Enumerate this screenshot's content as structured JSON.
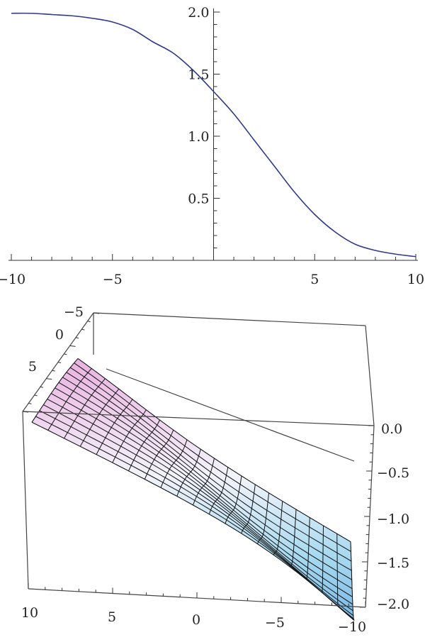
{
  "chart_data": [
    {
      "type": "line",
      "title": "",
      "xlabel": "",
      "ylabel": "",
      "xlim": [
        -10,
        10
      ],
      "ylim": [
        0,
        2.0
      ],
      "x_ticks": [
        -10,
        -5,
        5,
        10
      ],
      "x_tick_labels": [
        "−10",
        "−5",
        "5",
        "10"
      ],
      "y_ticks": [
        0.5,
        1.0,
        1.5,
        2.0
      ],
      "y_tick_labels": [
        "0.5",
        "1.0",
        "1.5",
        "2.0"
      ],
      "grid": false,
      "series": [
        {
          "color": "#2e3a8c",
          "x": [
            -10,
            -9,
            -8,
            -7,
            -6,
            -5,
            -4,
            -3,
            -2,
            -1,
            0,
            1,
            2,
            3,
            4,
            5,
            6,
            7,
            8,
            9,
            10
          ],
          "y": [
            1.99,
            1.99,
            1.98,
            1.97,
            1.95,
            1.92,
            1.86,
            1.76,
            1.67,
            1.53,
            1.36,
            1.18,
            0.97,
            0.76,
            0.55,
            0.37,
            0.23,
            0.13,
            0.08,
            0.05,
            0.03
          ]
        }
      ]
    },
    {
      "type": "surface3d",
      "title": "",
      "x_tick_labels": [
        "10",
        "5",
        "0",
        "−5",
        "−10"
      ],
      "y_tick_labels": [
        "−5",
        "0",
        "5"
      ],
      "z_tick_labels": [
        "0.0",
        "−0.5",
        "−1.0",
        "−1.5",
        "−2.0"
      ],
      "zlim": [
        -2.0,
        0.0
      ],
      "colormap": [
        "#e8a9dc",
        "#f4f6fb",
        "#9dd4ee",
        "#7ab8e6"
      ],
      "mesh_color": "#111111"
    }
  ]
}
